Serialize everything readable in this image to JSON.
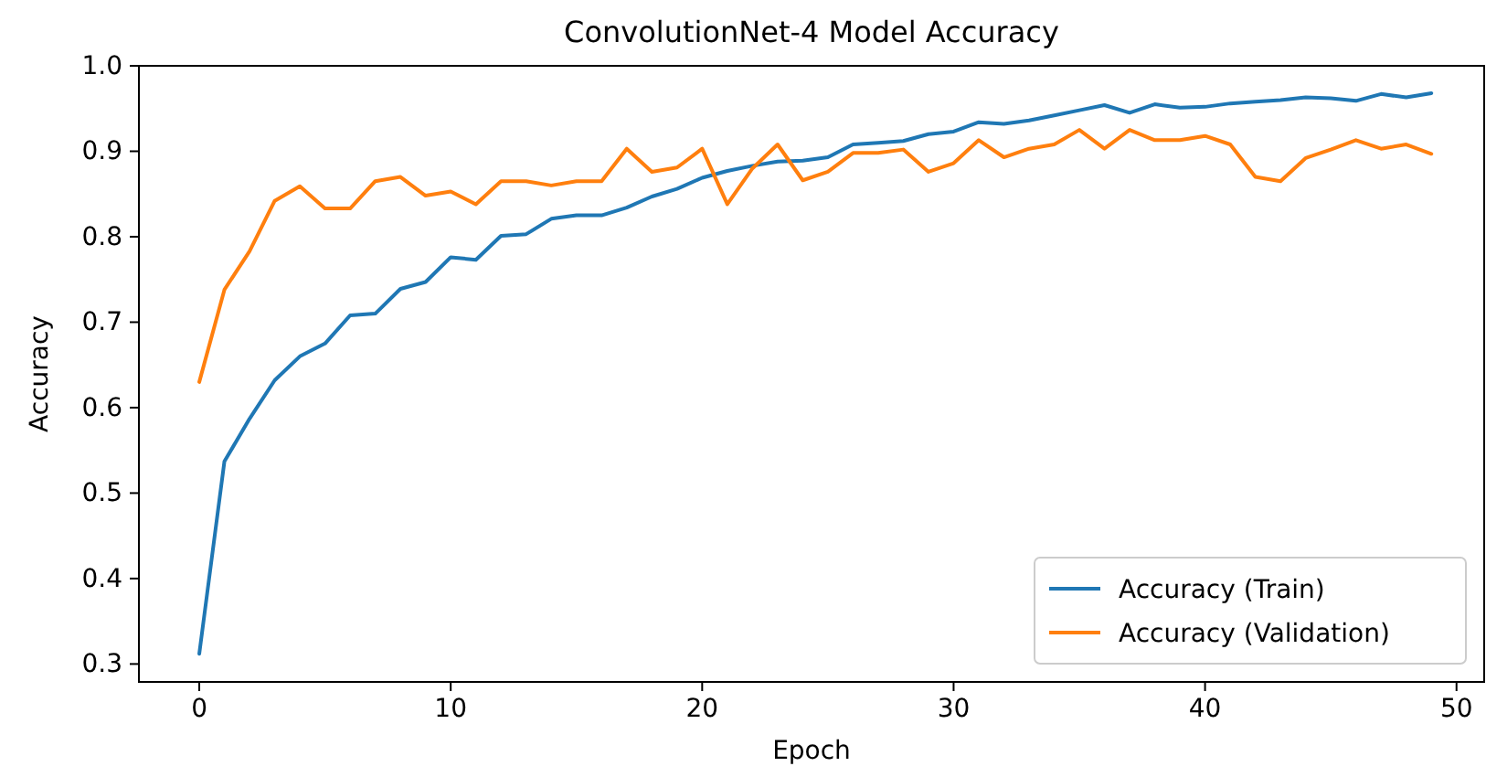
{
  "chart_data": {
    "type": "line",
    "title": "ConvolutionNet-4 Model Accuracy",
    "xlabel": "Epoch",
    "ylabel": "Accuracy",
    "x": [
      0,
      1,
      2,
      3,
      4,
      5,
      6,
      7,
      8,
      9,
      10,
      11,
      12,
      13,
      14,
      15,
      16,
      17,
      18,
      19,
      20,
      21,
      22,
      23,
      24,
      25,
      26,
      27,
      28,
      29,
      30,
      31,
      32,
      33,
      34,
      35,
      36,
      37,
      38,
      39,
      40,
      41,
      42,
      43,
      44,
      45,
      46,
      47,
      48,
      49
    ],
    "xlim": [
      -2.4,
      51.1
    ],
    "xticks": [
      0,
      10,
      20,
      30,
      40,
      50
    ],
    "ylim": [
      0.279,
      1.0
    ],
    "yticks": [
      {
        "value": 0.3,
        "label": "0.3"
      },
      {
        "value": 0.4,
        "label": "0.4"
      },
      {
        "value": 0.5,
        "label": "0.5"
      },
      {
        "value": 0.6,
        "label": "0.6"
      },
      {
        "value": 0.7,
        "label": "0.7"
      },
      {
        "value": 0.8,
        "label": "0.8"
      },
      {
        "value": 0.9,
        "label": "0.9"
      },
      {
        "value": 1.0,
        "label": "1.0"
      }
    ],
    "grid": false,
    "legend": "bottom right",
    "marker": "none",
    "line_style": "solid",
    "series": [
      {
        "name": "Accuracy (Train)",
        "color": "#1f77b4",
        "values": [
          0.312,
          0.537,
          0.587,
          0.632,
          0.66,
          0.675,
          0.708,
          0.71,
          0.739,
          0.747,
          0.776,
          0.773,
          0.801,
          0.803,
          0.821,
          0.825,
          0.825,
          0.834,
          0.847,
          0.856,
          0.869,
          0.877,
          0.883,
          0.888,
          0.889,
          0.893,
          0.908,
          0.91,
          0.912,
          0.92,
          0.923,
          0.934,
          0.932,
          0.936,
          0.942,
          0.948,
          0.954,
          0.945,
          0.955,
          0.951,
          0.952,
          0.956,
          0.958,
          0.96,
          0.963,
          0.962,
          0.959,
          0.967,
          0.963,
          0.968
        ]
      },
      {
        "name": "Accuracy (Validation)",
        "color": "#ff7f0e",
        "values": [
          0.63,
          0.738,
          0.783,
          0.842,
          0.859,
          0.833,
          0.833,
          0.865,
          0.87,
          0.848,
          0.853,
          0.838,
          0.865,
          0.865,
          0.86,
          0.865,
          0.865,
          0.903,
          0.876,
          0.881,
          0.903,
          0.838,
          0.88,
          0.908,
          0.866,
          0.876,
          0.898,
          0.898,
          0.902,
          0.876,
          0.886,
          0.913,
          0.893,
          0.903,
          0.908,
          0.925,
          0.903,
          0.925,
          0.913,
          0.913,
          0.918,
          0.908,
          0.87,
          0.865,
          0.892,
          0.902,
          0.913,
          0.903,
          0.908,
          0.897
        ]
      }
    ]
  }
}
